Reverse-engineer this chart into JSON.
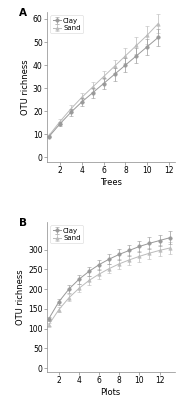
{
  "panel_A": {
    "title": "A",
    "xlabel": "Trees",
    "ylabel": "OTU richness",
    "xlim": [
      0.8,
      12.5
    ],
    "ylim": [
      -2,
      63
    ],
    "xticks": [
      2,
      4,
      6,
      8,
      10,
      12
    ],
    "yticks": [
      0,
      10,
      20,
      30,
      40,
      50,
      60
    ],
    "clay": {
      "x": [
        1,
        2,
        3,
        4,
        5,
        6,
        7,
        8,
        9,
        10,
        11
      ],
      "y": [
        9.0,
        14.5,
        19.5,
        24.0,
        28.0,
        32.0,
        36.0,
        40.0,
        44.0,
        48.0,
        52.0
      ],
      "yerr": [
        0.3,
        1.0,
        1.4,
        1.8,
        2.1,
        2.4,
        2.7,
        3.0,
        3.3,
        3.5,
        3.8
      ]
    },
    "sand": {
      "x": [
        1,
        2,
        3,
        4,
        5,
        6,
        7,
        8,
        9,
        10,
        11
      ],
      "y": [
        9.5,
        15.5,
        21.0,
        26.0,
        30.5,
        35.0,
        39.5,
        44.0,
        48.5,
        53.0,
        58.0
      ],
      "yerr": [
        0.3,
        1.1,
        1.5,
        1.9,
        2.3,
        2.6,
        2.9,
        3.3,
        3.6,
        3.9,
        4.2
      ]
    },
    "clay_color": "#999999",
    "sand_color": "#bbbbbb",
    "clay_marker": "o",
    "sand_marker": "^"
  },
  "panel_B": {
    "title": "B",
    "xlabel": "Plots",
    "ylabel": "OTU richness",
    "xlim": [
      0.8,
      13.5
    ],
    "ylim": [
      -10,
      370
    ],
    "xticks": [
      2,
      4,
      6,
      8,
      10,
      12
    ],
    "yticks": [
      0,
      50,
      100,
      150,
      200,
      250,
      300
    ],
    "clay": {
      "x": [
        1,
        2,
        3,
        4,
        5,
        6,
        7,
        8,
        9,
        10,
        11,
        12,
        13
      ],
      "y": [
        125,
        168,
        200,
        225,
        245,
        262,
        276,
        288,
        298,
        308,
        316,
        323,
        330
      ],
      "yerr": [
        5,
        8,
        10,
        11,
        12,
        13,
        13,
        14,
        14,
        15,
        15,
        15,
        16
      ]
    },
    "sand": {
      "x": [
        1,
        2,
        3,
        4,
        5,
        6,
        7,
        8,
        9,
        10,
        11,
        12,
        13
      ],
      "y": [
        110,
        148,
        178,
        202,
        222,
        238,
        252,
        264,
        274,
        283,
        291,
        298,
        304
      ],
      "yerr": [
        4,
        7,
        9,
        10,
        11,
        12,
        12,
        13,
        13,
        14,
        14,
        14,
        15
      ]
    },
    "clay_color": "#999999",
    "sand_color": "#bbbbbb",
    "clay_marker": "o",
    "sand_marker": "^"
  },
  "legend_labels": [
    "Clay",
    "Sand"
  ],
  "background_color": "#ffffff",
  "fontsize": 5.5,
  "linewidth": 0.7,
  "markersize": 2.5,
  "capsize": 1.5,
  "elinewidth": 0.5
}
